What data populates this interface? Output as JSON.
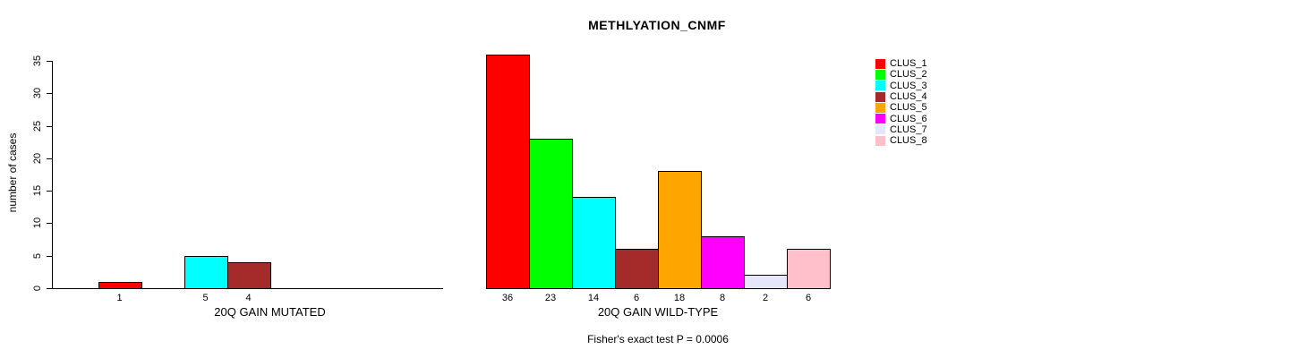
{
  "title": "METHLYATION_CNMF",
  "footer": "Fisher's exact test P = 0.0006",
  "chart_data": {
    "type": "bar",
    "title": "METHLYATION_CNMF",
    "ylabel": "number of cases",
    "xlabel": "",
    "ylim": [
      0,
      35
    ],
    "yticks": [
      0,
      5,
      10,
      15,
      20,
      25,
      30,
      35
    ],
    "grid": false,
    "legend_position": "top-right",
    "clusters": [
      {
        "name": "CLUS_1",
        "color": "#FF0000"
      },
      {
        "name": "CLUS_2",
        "color": "#00FF00"
      },
      {
        "name": "CLUS_3",
        "color": "#00FFFF"
      },
      {
        "name": "CLUS_4",
        "color": "#A52A2A"
      },
      {
        "name": "CLUS_5",
        "color": "#FFA500"
      },
      {
        "name": "CLUS_6",
        "color": "#FF00FF"
      },
      {
        "name": "CLUS_7",
        "color": "#E6E6FA"
      },
      {
        "name": "CLUS_8",
        "color": "#FFC0CB"
      }
    ],
    "groups": [
      {
        "label": "20Q GAIN MUTATED",
        "values": [
          1,
          0,
          5,
          4,
          0,
          0,
          0,
          0
        ]
      },
      {
        "label": "20Q GAIN WILD-TYPE",
        "values": [
          36,
          23,
          14,
          6,
          18,
          8,
          2,
          6
        ]
      }
    ]
  }
}
